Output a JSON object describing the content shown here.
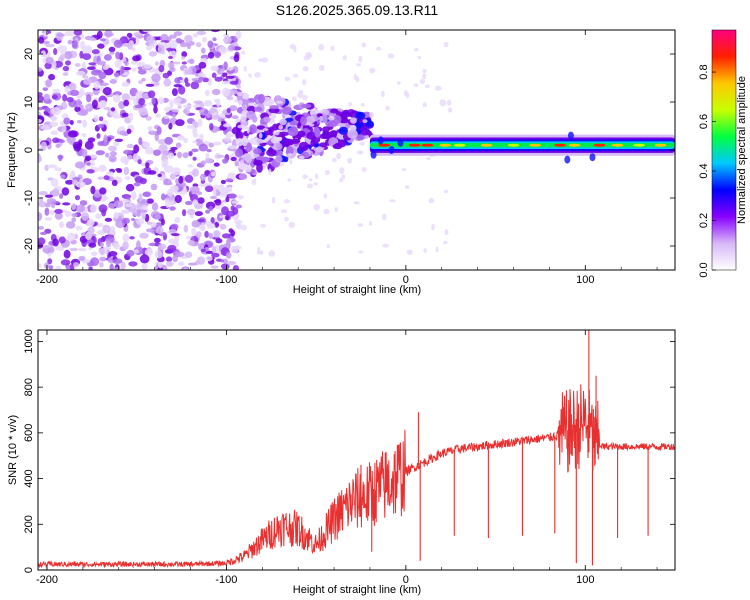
{
  "title": "S126.2025.365.09.13.R11",
  "colors": {
    "snr_line": "#e83030",
    "axis": "#000000",
    "spectrogram_background": "#ffffff"
  },
  "chart_data": [
    {
      "type": "heatmap",
      "name": "spectrogram",
      "xlabel": "Height of straight line (km)",
      "ylabel": "Frequency (Hz)",
      "xlim": [
        -205,
        150
      ],
      "ylim": [
        -25,
        25
      ],
      "xticks": [
        -200,
        -100,
        0,
        100
      ],
      "xtick_labels": [
        "-200",
        "-100",
        "0",
        "100"
      ],
      "yticks": [
        -20,
        -10,
        0,
        10,
        20
      ],
      "ytick_labels": [
        "-20",
        "-10",
        "0",
        "10",
        "20"
      ],
      "colorbar": {
        "label": "Normalized spectral amplitude",
        "range": [
          0,
          0.97
        ],
        "ticks": [
          0.0,
          0.2,
          0.4,
          0.6,
          0.8
        ],
        "tick_labels": [
          "0.0",
          "0.2",
          "0.4",
          "0.6",
          "0.8"
        ],
        "colormap": [
          "#ffffff",
          "#d8b8f8",
          "#8800ff",
          "#0000ff",
          "#00c8ff",
          "#00ff40",
          "#c8ff00",
          "#ffc800",
          "#ff2000",
          "#ff0080"
        ]
      },
      "regions": [
        {
          "x_range": [
            -205,
            -93
          ],
          "description": "broadband noise",
          "freq_span": [
            -25,
            25
          ],
          "amplitude": 0.12
        },
        {
          "x_range": [
            -93,
            -20
          ],
          "description": "emerging signal",
          "freq_span": [
            -8,
            10
          ],
          "amplitude": 0.22
        },
        {
          "x_range": [
            -20,
            150
          ],
          "description": "steady tone near 1 Hz",
          "center_freq": 1,
          "amplitude": 0.5
        }
      ]
    },
    {
      "type": "line",
      "name": "snr",
      "xlabel": "Height of straight line (km)",
      "ylabel": "SNR (10 * v/v)",
      "xlim": [
        -205,
        150
      ],
      "ylim": [
        0,
        1050
      ],
      "xticks": [
        -200,
        -100,
        0,
        100
      ],
      "xtick_labels": [
        "-200",
        "-100",
        "0",
        "100"
      ],
      "yticks": [
        0,
        200,
        400,
        600,
        800,
        1000
      ],
      "ytick_labels": [
        "0",
        "200",
        "400",
        "600",
        "800",
        "1000"
      ],
      "series": [
        {
          "name": "SNR",
          "x": [
            -205,
            -180,
            -150,
            -120,
            -100,
            -90,
            -80,
            -70,
            -60,
            -50,
            -40,
            -30,
            -20,
            -10,
            0,
            10,
            20,
            30,
            40,
            50,
            60,
            70,
            80,
            90,
            95,
            100,
            105,
            110,
            120,
            130,
            140,
            150
          ],
          "y": [
            25,
            25,
            25,
            25,
            30,
            60,
            130,
            190,
            180,
            110,
            220,
            300,
            330,
            380,
            430,
            470,
            510,
            530,
            540,
            550,
            560,
            570,
            580,
            600,
            620,
            650,
            560,
            540,
            540,
            540,
            540,
            540
          ]
        }
      ],
      "spikes": [
        {
          "x": -25,
          "y": 460
        },
        {
          "x": -19,
          "y": 80
        },
        {
          "x": 7,
          "y": 690
        },
        {
          "x": 8,
          "y": 40
        },
        {
          "x": 27,
          "y": 150
        },
        {
          "x": 46,
          "y": 140
        },
        {
          "x": 65,
          "y": 150
        },
        {
          "x": 83,
          "y": 160
        },
        {
          "x": 95,
          "y": 30
        },
        {
          "x": 102,
          "y": 1050
        },
        {
          "x": 104,
          "y": 20
        },
        {
          "x": 106,
          "y": 850
        },
        {
          "x": 118,
          "y": 140
        },
        {
          "x": 135,
          "y": 150
        }
      ]
    }
  ]
}
